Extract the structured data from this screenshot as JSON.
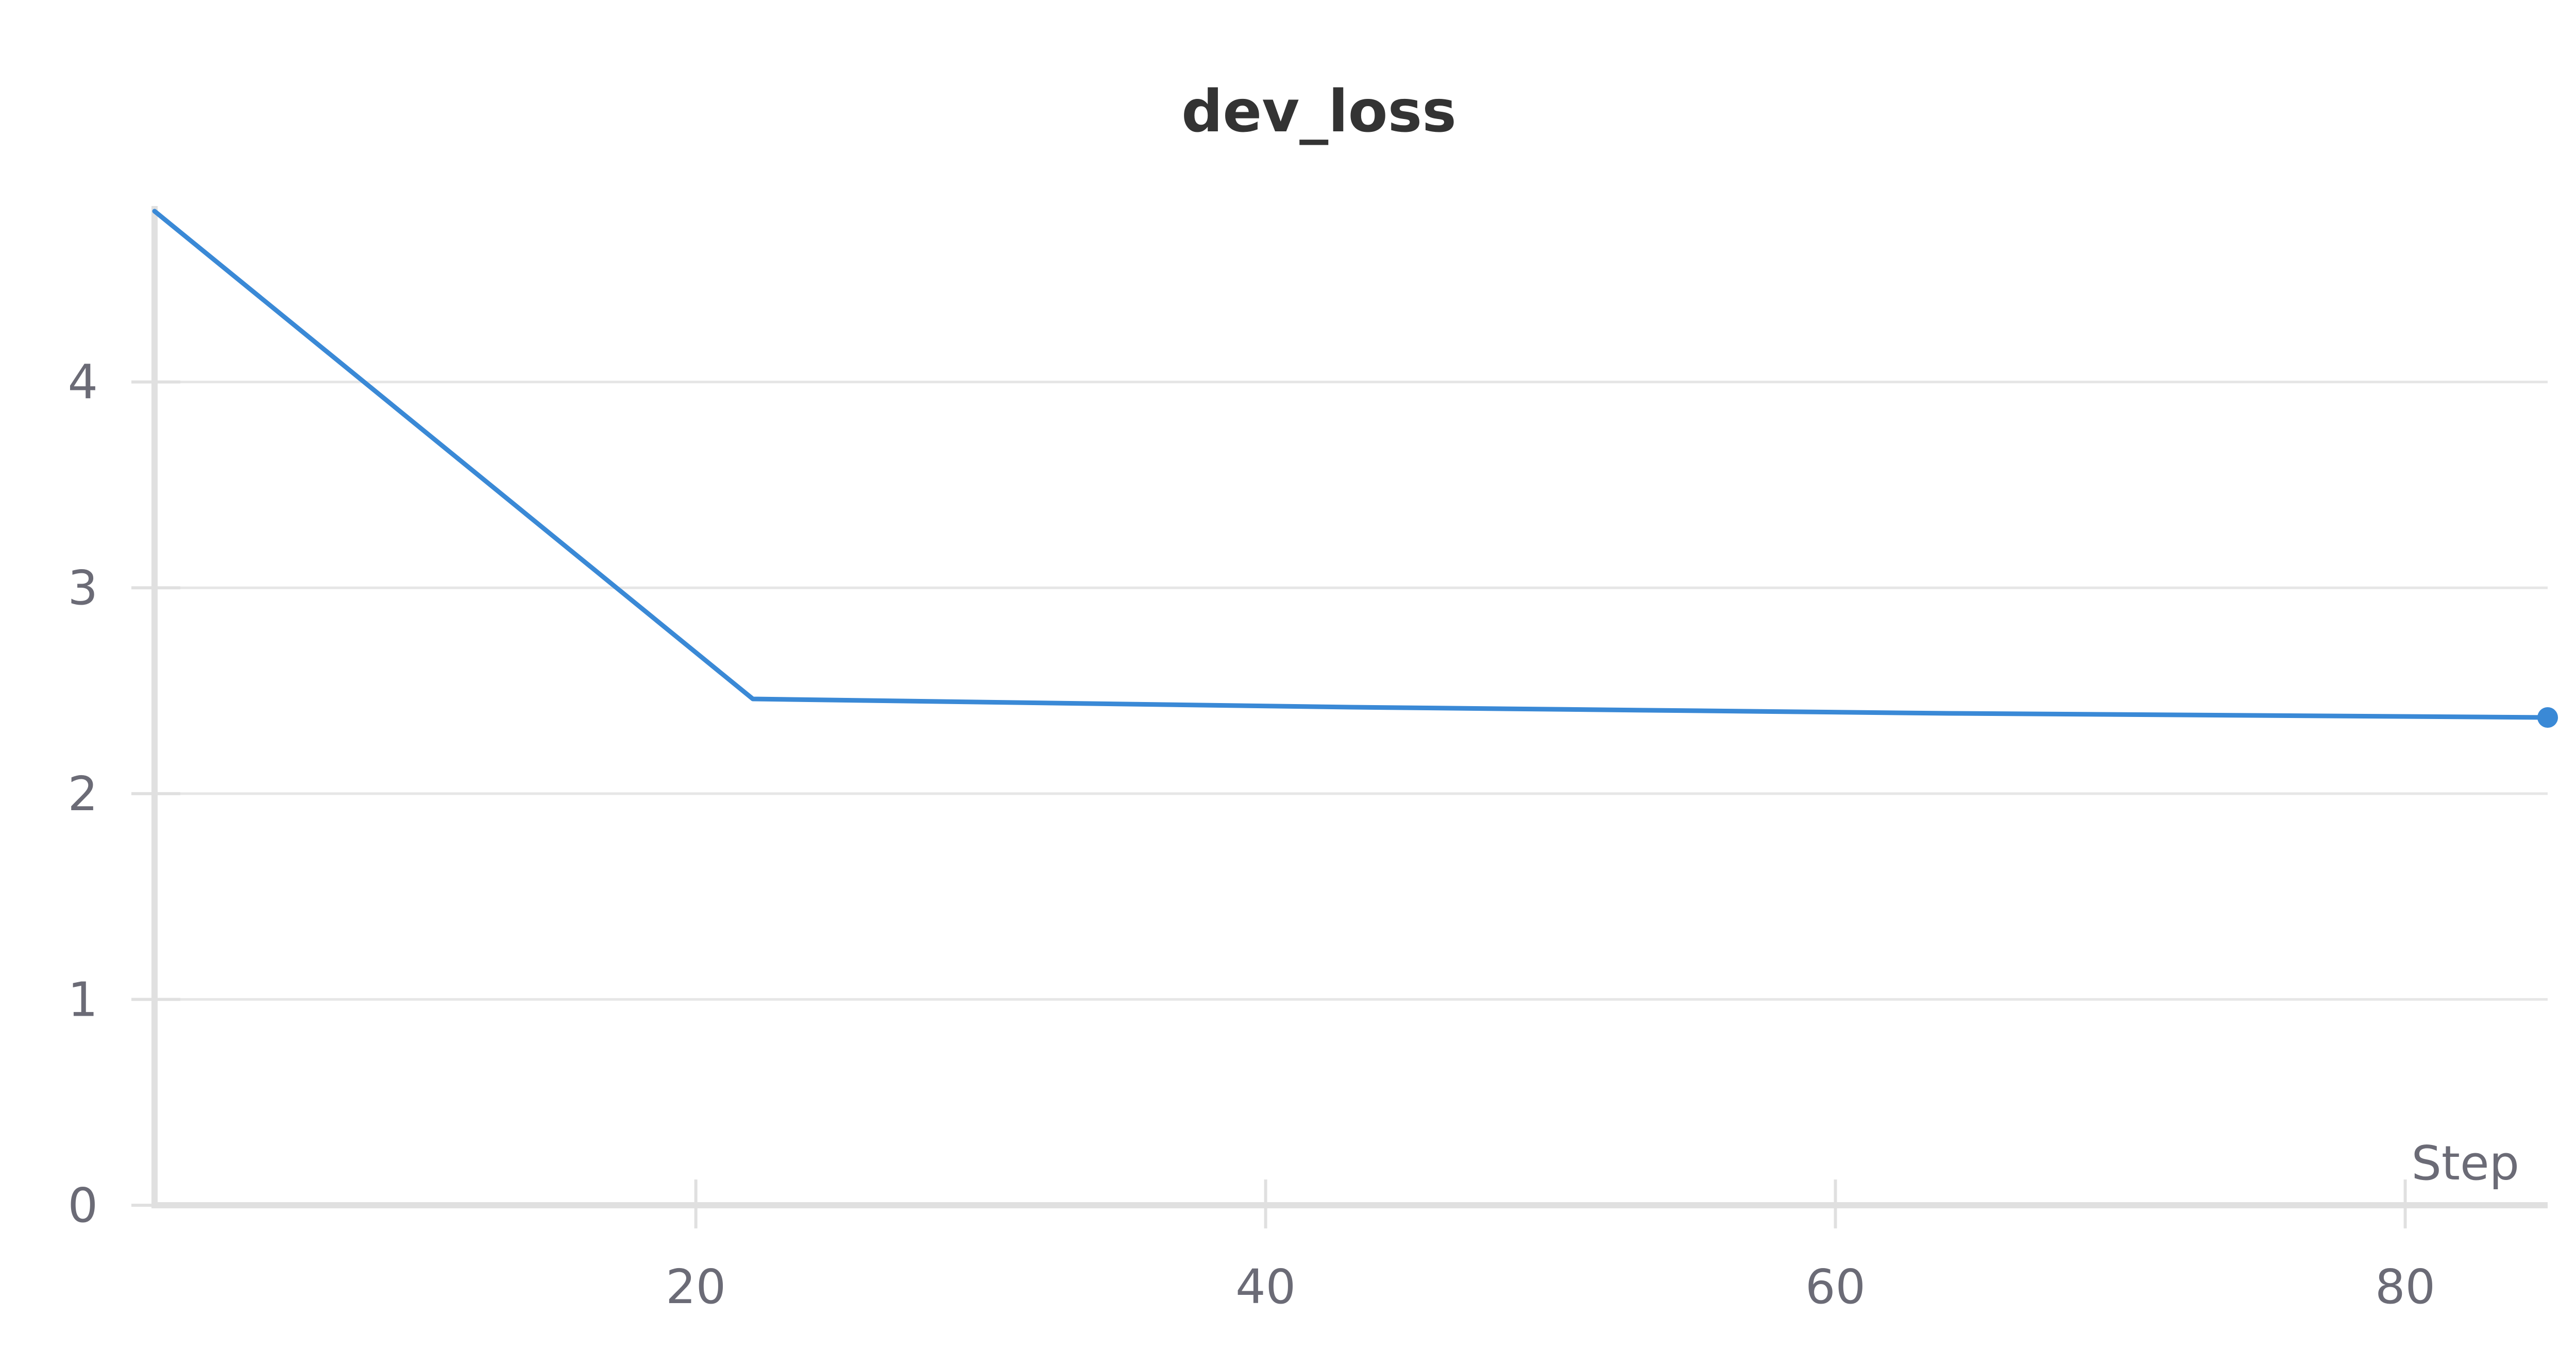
{
  "chart_data": {
    "type": "line",
    "title": "dev_loss",
    "xlabel": "Step",
    "ylabel": "",
    "xlim": [
      1,
      85
    ],
    "ylim": [
      0,
      4.83
    ],
    "xticks": [
      20,
      40,
      60,
      80
    ],
    "xtick_labels": [
      "20",
      "40",
      "60",
      "80"
    ],
    "yticks": [
      0,
      1,
      2,
      3,
      4
    ],
    "ytick_labels": [
      "0",
      "1",
      "2",
      "3",
      "4"
    ],
    "grid": true,
    "legend": "none",
    "series": [
      {
        "color": "#3a89d6",
        "x": [
          1,
          22,
          43,
          64,
          85
        ],
        "y": [
          4.83,
          2.46,
          2.42,
          2.39,
          2.37
        ]
      }
    ]
  },
  "colors": {
    "line": "#3a89d6",
    "grid": "#e6e6e6",
    "axis": "#e0e0e0",
    "text": "#6b6b76",
    "title": "#333333"
  }
}
